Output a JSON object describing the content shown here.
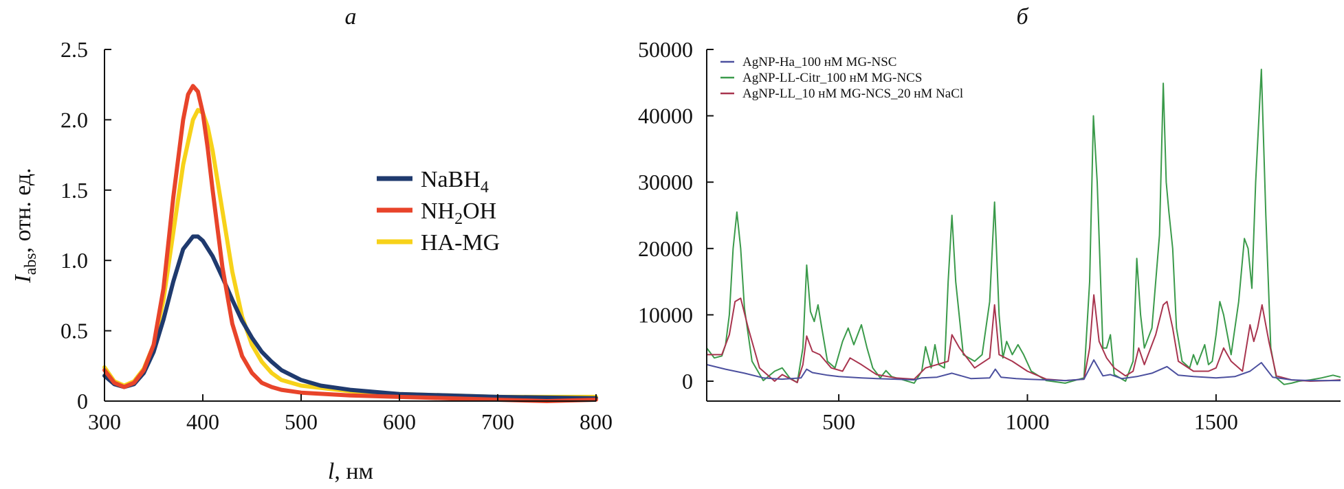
{
  "colors": {
    "navy": "#1f3a6e",
    "red": "#e8442a",
    "yellow": "#f7d21a",
    "blue_b": "#4b4f9e",
    "green_b": "#3a9a4a",
    "maroon_b": "#a8344e"
  },
  "chart_data": [
    {
      "type": "line",
      "panel_label": "а",
      "xlabel_main": "l",
      "xlabel_rest": ", нм",
      "ylabel_main": "I",
      "ylabel_sub": "abs",
      "ylabel_rest": ", отн. ед.",
      "xlim": [
        300,
        800
      ],
      "ylim": [
        0,
        2.5
      ],
      "x_ticks": [
        "300",
        "400",
        "500",
        "600",
        "700",
        "800"
      ],
      "y_ticks": [
        "0",
        "0.5",
        "1.0",
        "1.5",
        "2.0",
        "2.5"
      ],
      "legend_position": "right-center",
      "series": [
        {
          "name_main": "NaBH",
          "name_sub": "4",
          "name_rest": "",
          "color": "#1f3a6e",
          "x": [
            300,
            310,
            320,
            330,
            340,
            350,
            360,
            370,
            380,
            390,
            395,
            400,
            410,
            420,
            430,
            440,
            450,
            460,
            470,
            480,
            500,
            520,
            550,
            600,
            650,
            700,
            750,
            800
          ],
          "y": [
            0.18,
            0.12,
            0.1,
            0.12,
            0.2,
            0.35,
            0.58,
            0.85,
            1.08,
            1.17,
            1.17,
            1.14,
            1.03,
            0.88,
            0.72,
            0.57,
            0.45,
            0.35,
            0.28,
            0.22,
            0.15,
            0.11,
            0.08,
            0.05,
            0.04,
            0.03,
            0.025,
            0.02
          ]
        },
        {
          "name_main": "NH",
          "name_sub": "2",
          "name_rest": "OH",
          "color": "#e8442a",
          "x": [
            300,
            310,
            320,
            330,
            340,
            350,
            360,
            370,
            380,
            385,
            390,
            395,
            400,
            405,
            410,
            420,
            430,
            440,
            450,
            460,
            470,
            480,
            500,
            550,
            600,
            650,
            700,
            750,
            800
          ],
          "y": [
            0.22,
            0.13,
            0.1,
            0.13,
            0.22,
            0.4,
            0.8,
            1.45,
            2.0,
            2.18,
            2.24,
            2.2,
            2.05,
            1.8,
            1.5,
            0.95,
            0.55,
            0.32,
            0.2,
            0.13,
            0.1,
            0.08,
            0.06,
            0.04,
            0.03,
            0.02,
            0.01,
            0.0,
            0.01
          ]
        },
        {
          "name_main": "HA-MG",
          "name_sub": "",
          "name_rest": "",
          "color": "#f7d21a",
          "x": [
            300,
            310,
            320,
            330,
            340,
            350,
            360,
            370,
            380,
            390,
            395,
            400,
            405,
            410,
            420,
            430,
            440,
            450,
            460,
            470,
            480,
            500,
            550,
            600,
            650,
            700,
            750,
            800
          ],
          "y": [
            0.24,
            0.14,
            0.11,
            0.14,
            0.23,
            0.4,
            0.72,
            1.2,
            1.68,
            2.0,
            2.07,
            2.05,
            1.95,
            1.78,
            1.35,
            0.92,
            0.6,
            0.4,
            0.28,
            0.2,
            0.15,
            0.11,
            0.07,
            0.05,
            0.04,
            0.03,
            0.03,
            0.03
          ]
        }
      ]
    },
    {
      "type": "line",
      "panel_label": "б",
      "xlim": [
        150,
        1830
      ],
      "ylim": [
        -3000,
        50000
      ],
      "x_ticks": [
        "500",
        "1000",
        "1500"
      ],
      "x_tick_values": [
        500,
        1000,
        1500
      ],
      "y_ticks": [
        "0",
        "10000",
        "20000",
        "30000",
        "40000",
        "50000"
      ],
      "legend_position": "top-left",
      "series": [
        {
          "name": "AgNP-Ha_100 нМ MG-NSC",
          "color": "#4b4f9e",
          "x": [
            150,
            200,
            250,
            300,
            350,
            400,
            415,
            430,
            470,
            500,
            530,
            560,
            600,
            650,
            700,
            720,
            760,
            800,
            850,
            900,
            915,
            930,
            970,
            1000,
            1050,
            1100,
            1150,
            1176,
            1200,
            1220,
            1250,
            1290,
            1330,
            1370,
            1400,
            1440,
            1470,
            1500,
            1550,
            1590,
            1620,
            1650,
            1700,
            1750,
            1800,
            1830
          ],
          "y": [
            2500,
            1800,
            1200,
            500,
            300,
            500,
            1800,
            1300,
            900,
            700,
            600,
            500,
            400,
            300,
            200,
            500,
            600,
            1200,
            400,
            500,
            1800,
            600,
            400,
            300,
            200,
            100,
            300,
            3200,
            800,
            1000,
            400,
            700,
            1200,
            2200,
            900,
            700,
            600,
            500,
            700,
            1500,
            2800,
            600,
            200,
            100,
            100,
            100
          ]
        },
        {
          "name": "AgNP-LL-Citr_100 нМ MG-NCS",
          "color": "#3a9a4a",
          "x": [
            150,
            170,
            190,
            200,
            210,
            220,
            230,
            240,
            250,
            270,
            300,
            330,
            350,
            370,
            390,
            405,
            415,
            425,
            435,
            445,
            455,
            470,
            490,
            510,
            525,
            540,
            560,
            575,
            590,
            610,
            625,
            640,
            670,
            700,
            720,
            730,
            745,
            755,
            765,
            780,
            790,
            800,
            810,
            830,
            860,
            880,
            900,
            913,
            925,
            935,
            945,
            960,
            975,
            990,
            1010,
            1050,
            1100,
            1150,
            1165,
            1175,
            1185,
            1200,
            1210,
            1220,
            1230,
            1260,
            1280,
            1290,
            1300,
            1310,
            1330,
            1350,
            1360,
            1368,
            1375,
            1385,
            1395,
            1410,
            1430,
            1440,
            1450,
            1460,
            1470,
            1480,
            1490,
            1500,
            1510,
            1520,
            1540,
            1560,
            1575,
            1585,
            1595,
            1605,
            1620,
            1632,
            1645,
            1660,
            1680,
            1700,
            1720,
            1750,
            1780,
            1810,
            1830
          ],
          "y": [
            5000,
            3500,
            3800,
            5500,
            10000,
            20000,
            25500,
            20000,
            11000,
            3000,
            100,
            1500,
            2000,
            500,
            -200,
            5000,
            17500,
            10500,
            9000,
            11500,
            8000,
            3000,
            2000,
            6000,
            8000,
            5500,
            8500,
            5000,
            2000,
            500,
            1600,
            700,
            200,
            -300,
            1500,
            5200,
            2000,
            5500,
            2500,
            2000,
            15000,
            25000,
            15000,
            4000,
            3000,
            4000,
            12000,
            27000,
            10000,
            3500,
            6000,
            4000,
            5500,
            4000,
            1500,
            100,
            -300,
            500,
            15000,
            40000,
            30000,
            5000,
            5000,
            7000,
            1000,
            0,
            3000,
            18500,
            10000,
            5000,
            8000,
            22000,
            44900,
            30000,
            25500,
            20000,
            8000,
            3000,
            2000,
            4000,
            2500,
            4000,
            5500,
            2500,
            3000,
            7000,
            12000,
            10000,
            4000,
            12000,
            21500,
            20000,
            14000,
            30000,
            47000,
            25000,
            5000,
            500,
            -500,
            -300,
            0,
            200,
            500,
            900,
            600
          ]
        },
        {
          "name": "AgNP-LL_10 нМ MG-NCS_20 нМ NaCl",
          "color": "#a8344e",
          "x": [
            150,
            190,
            210,
            225,
            240,
            260,
            290,
            330,
            350,
            390,
            405,
            415,
            430,
            450,
            480,
            510,
            530,
            560,
            600,
            650,
            700,
            730,
            760,
            790,
            800,
            820,
            860,
            900,
            913,
            925,
            960,
            1000,
            1050,
            1100,
            1150,
            1165,
            1176,
            1190,
            1210,
            1230,
            1260,
            1280,
            1295,
            1310,
            1340,
            1360,
            1370,
            1385,
            1400,
            1440,
            1480,
            1500,
            1520,
            1540,
            1570,
            1590,
            1600,
            1610,
            1622,
            1640,
            1660,
            1700,
            1750,
            1800,
            1830
          ],
          "y": [
            4000,
            4000,
            7000,
            12000,
            12500,
            8000,
            2000,
            0,
            1000,
            -200,
            2500,
            6800,
            4500,
            4000,
            2000,
            1500,
            3500,
            2500,
            1000,
            500,
            300,
            2000,
            2500,
            3000,
            7000,
            5000,
            2000,
            3500,
            11500,
            4000,
            3000,
            1500,
            300,
            100,
            300,
            5000,
            13000,
            6000,
            3500,
            2000,
            800,
            1500,
            5000,
            2500,
            7000,
            11500,
            12000,
            8000,
            3000,
            1500,
            1500,
            2000,
            5000,
            3000,
            1500,
            8500,
            6000,
            8000,
            11500,
            6000,
            800,
            200,
            0,
            100,
            200
          ]
        }
      ]
    }
  ]
}
